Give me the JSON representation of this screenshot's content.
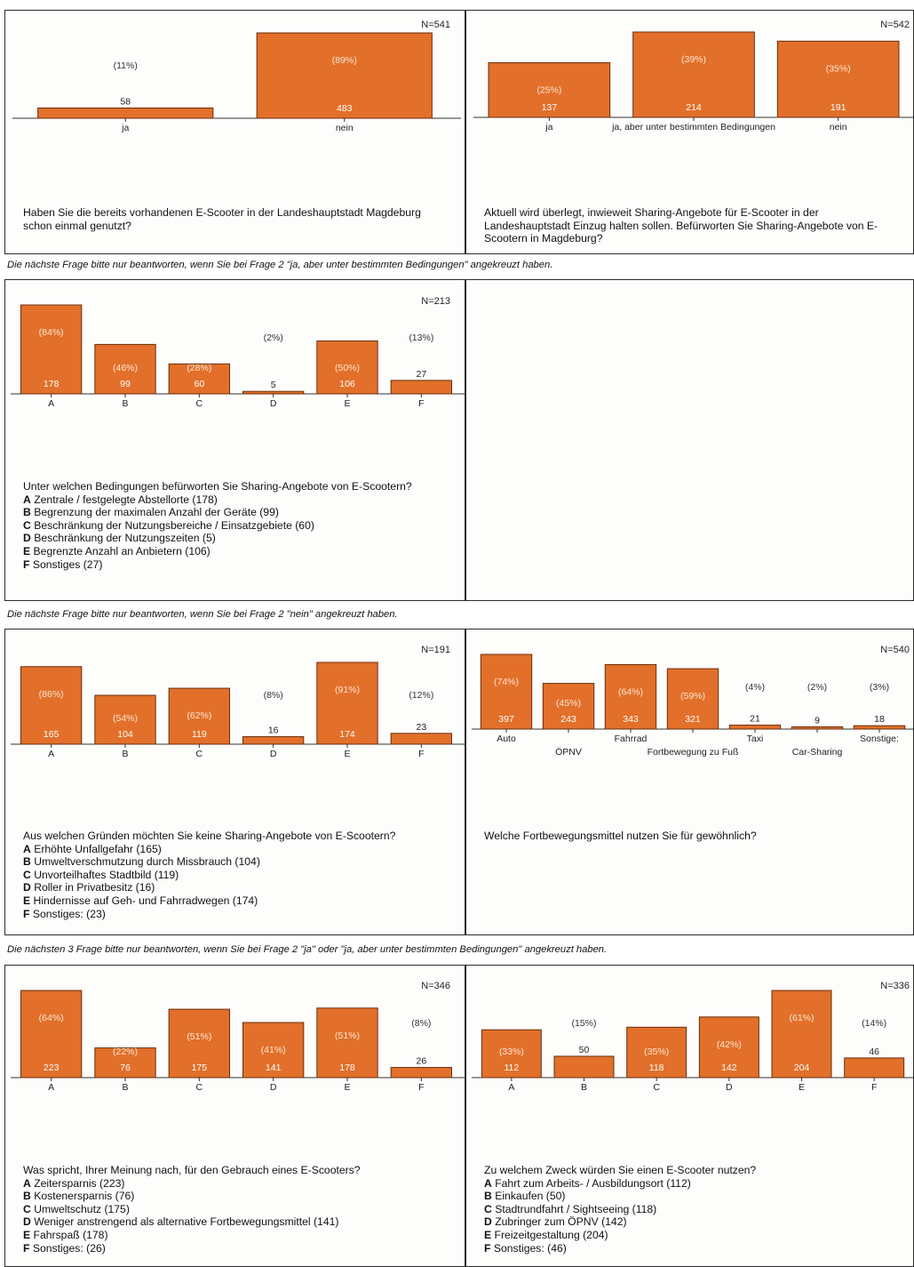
{
  "notes": [
    "Die nächste Frage bitte nur beantworten, wenn Sie bei Frage 2 \"ja, aber unter bestimmten Bedingungen\" angekreuzt haben.",
    "Die nächste Frage bitte nur beantworten, wenn Sie bei Frage 2 \"nein\" angekreuzt haben.",
    "Die nächsten 3 Frage bitte nur beantworten, wenn Sie bei Frage 2 \"ja\" oder \"ja, aber unter bestimmten Bedingungen\" angekreuzt haben."
  ],
  "chart_data": [
    {
      "type": "bar",
      "n_label": "N=541",
      "categories": [
        "ja",
        "nein"
      ],
      "values": [
        58,
        483
      ],
      "percents": [
        "(11%)",
        "(89%)"
      ],
      "question": "Haben Sie die bereits vorhandenen E-Scooter in der Landeshauptstadt Magdeburg schon einmal genutzt?",
      "options": []
    },
    {
      "type": "bar",
      "n_label": "N=542",
      "categories": [
        "ja",
        "ja, aber unter bestimmten Bedingungen",
        "nein"
      ],
      "values": [
        137,
        214,
        191
      ],
      "percents": [
        "(25%)",
        "(39%)",
        "(35%)"
      ],
      "question": "Aktuell wird überlegt, inwieweit Sharing-Angebote für E-Scooter in der Landeshauptstadt Einzug halten sollen. Befürworten Sie Sharing-Angebote von E-Scootern in Magdeburg?",
      "options": []
    },
    {
      "type": "bar",
      "n_label": "N=213",
      "categories": [
        "A",
        "B",
        "C",
        "D",
        "E",
        "F"
      ],
      "values": [
        178,
        99,
        60,
        5,
        106,
        27
      ],
      "percents": [
        "(84%)",
        "(46%)",
        "(28%)",
        "(2%)",
        "(50%)",
        "(13%)"
      ],
      "question": "Unter welchen Bedingungen befürworten Sie Sharing-Angebote von E-Scootern?",
      "options": [
        {
          "key": "A",
          "text": "Zentrale / festgelegte Abstellorte (178)"
        },
        {
          "key": "B",
          "text": "Begrenzung der maximalen Anzahl der Geräte (99)"
        },
        {
          "key": "C",
          "text": "Beschränkung der Nutzungsbereiche / Einsatzgebiete (60)"
        },
        {
          "key": "D",
          "text": "Beschränkung der Nutzungszeiten (5)"
        },
        {
          "key": "E",
          "text": "Begrenzte Anzahl an Anbietern (106)"
        },
        {
          "key": "F",
          "text": "Sonstiges (27)"
        }
      ]
    },
    {
      "type": "bar",
      "n_label": "N=191",
      "categories": [
        "A",
        "B",
        "C",
        "D",
        "E",
        "F"
      ],
      "values": [
        165,
        104,
        119,
        16,
        174,
        23
      ],
      "percents": [
        "(86%)",
        "(54%)",
        "(62%)",
        "(8%)",
        "(91%)",
        "(12%)"
      ],
      "question": "Aus welchen Gründen möchten Sie keine Sharing-Angebote von E-Scootern?",
      "options": [
        {
          "key": "A",
          "text": "Erhöhte Unfallgefahr (165)"
        },
        {
          "key": "B",
          "text": "Umweltverschmutzung durch Missbrauch (104)"
        },
        {
          "key": "C",
          "text": "Unvorteilhaftes Stadtbild (119)"
        },
        {
          "key": "D",
          "text": "Roller in Privatbesitz (16)"
        },
        {
          "key": "E",
          "text": "Hindernisse auf Geh- und Fahrradwegen (174)"
        },
        {
          "key": "F",
          "text": "Sonstiges: (23)"
        }
      ]
    },
    {
      "type": "bar",
      "n_label": "N=540",
      "categories": [
        "Auto",
        "ÖPNV",
        "Fahrrad",
        "Fortbewegung zu Fuß",
        "Taxi",
        "Car-Sharing",
        "Sonstige:"
      ],
      "values": [
        397,
        243,
        343,
        321,
        21,
        9,
        18
      ],
      "percents": [
        "(74%)",
        "(45%)",
        "(64%)",
        "(59%)",
        "(4%)",
        "(2%)",
        "(3%)"
      ],
      "question": "Welche Fortbewegungsmittel nutzen Sie für gewöhnlich?",
      "options": []
    },
    {
      "type": "bar",
      "n_label": "N=346",
      "categories": [
        "A",
        "B",
        "C",
        "D",
        "E",
        "F"
      ],
      "values": [
        223,
        76,
        175,
        141,
        178,
        26
      ],
      "percents": [
        "(64%)",
        "(22%)",
        "(51%)",
        "(41%)",
        "(51%)",
        "(8%)"
      ],
      "question": "Was spricht, Ihrer Meinung nach, für den Gebrauch eines E-Scooters?",
      "options": [
        {
          "key": "A",
          "text": "Zeitersparnis (223)"
        },
        {
          "key": "B",
          "text": "Kostenersparnis (76)"
        },
        {
          "key": "C",
          "text": "Umweltschutz (175)"
        },
        {
          "key": "D",
          "text": "Weniger anstrengend als alternative Fortbewegungsmittel (141)"
        },
        {
          "key": "E",
          "text": "Fahrspaß (178)"
        },
        {
          "key": "F",
          "text": "Sonstiges: (26)"
        }
      ]
    },
    {
      "type": "bar",
      "n_label": "N=336",
      "categories": [
        "A",
        "B",
        "C",
        "D",
        "E",
        "F"
      ],
      "values": [
        112,
        50,
        118,
        142,
        204,
        46
      ],
      "percents": [
        "(33%)",
        "(15%)",
        "(35%)",
        "(42%)",
        "(61%)",
        "(14%)"
      ],
      "question": "Zu welchem Zweck würden Sie einen E-Scooter nutzen?",
      "options": [
        {
          "key": "A",
          "text": "Fahrt zum Arbeits- / Ausbildungsort (112)"
        },
        {
          "key": "B",
          "text": "Einkaufen (50)"
        },
        {
          "key": "C",
          "text": "Stadtrundfahrt / Sightseeing (118)"
        },
        {
          "key": "D",
          "text": "Zubringer zum ÖPNV (142)"
        },
        {
          "key": "E",
          "text": "Freizeitgestaltung (204)"
        },
        {
          "key": "F",
          "text": "Sonstiges: (46)"
        }
      ]
    }
  ],
  "colors": {
    "bar_fill": "#e2702a",
    "bar_stroke": "#6a2d0c",
    "axis": "#333333"
  }
}
